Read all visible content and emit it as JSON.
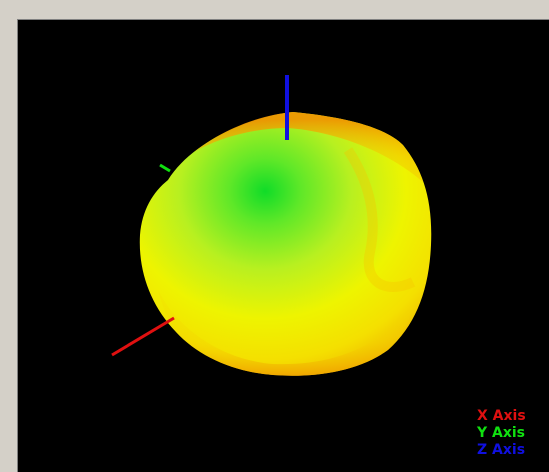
{
  "viewer": {
    "background_color": "#000000",
    "frame_color": "#d4d0c8"
  },
  "surface": {
    "colormap": [
      "#00dd20",
      "#8ef020",
      "#f0f000",
      "#f8c000",
      "#f09000"
    ]
  },
  "axes": [
    {
      "label": "X Axis",
      "color": "#e01010"
    },
    {
      "label": "Y Axis",
      "color": "#10e010"
    },
    {
      "label": "Z Axis",
      "color": "#1010e0"
    }
  ]
}
